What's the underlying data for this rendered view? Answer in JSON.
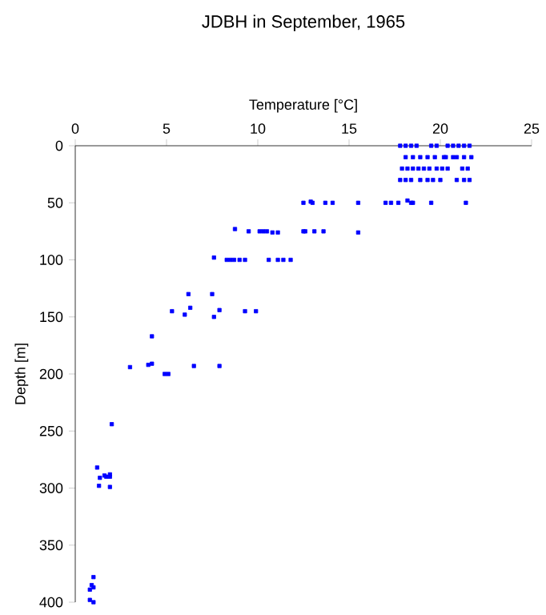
{
  "chart_data": {
    "type": "scatter",
    "title": "JDBH in September, 1965",
    "xlabel": "Temperature [°C]",
    "ylabel": "Depth [m]",
    "xlim": [
      0,
      25
    ],
    "xticks": [
      0,
      5,
      10,
      15,
      20,
      25
    ],
    "ylim": [
      400,
      0
    ],
    "yticks": [
      0,
      50,
      100,
      150,
      200,
      250,
      300,
      350,
      400
    ],
    "marker": "square",
    "series": [
      {
        "color": "#0000ff",
        "x": [
          17.8,
          18.1,
          18.4,
          18.7,
          19.5,
          19.8,
          20.4,
          20.7,
          21.0,
          21.3,
          21.6,
          18.1,
          18.5,
          18.9,
          19.3,
          19.7,
          20.2,
          20.3,
          20.7,
          20.9,
          21.3,
          21.7,
          17.9,
          18.2,
          18.5,
          18.8,
          19.1,
          19.4,
          19.8,
          20.1,
          20.4,
          21.2,
          21.5,
          17.8,
          18.1,
          18.4,
          18.9,
          19.3,
          19.6,
          20.0,
          20.9,
          21.3,
          21.6,
          12.5,
          12.9,
          13.0,
          13.7,
          14.1,
          15.5,
          17.0,
          17.3,
          17.7,
          18.2,
          18.4,
          18.5,
          19.5,
          21.4,
          8.75,
          9.5,
          10.1,
          10.3,
          10.5,
          10.8,
          11.1,
          12.5,
          12.6,
          13.1,
          13.6,
          15.5,
          7.6,
          8.3,
          8.5,
          8.7,
          9.0,
          9.3,
          10.6,
          11.1,
          11.4,
          11.8,
          6.2,
          7.5,
          5.3,
          6.0,
          6.3,
          7.6,
          7.9,
          9.3,
          9.9,
          4.2,
          3.0,
          4.0,
          4.2,
          4.9,
          5.1,
          6.5,
          7.9,
          2.0,
          1.2,
          1.35,
          1.6,
          1.9,
          1.7,
          1.9,
          1.3,
          1.9,
          1.0,
          0.9,
          0.8,
          1.0,
          0.8,
          1.0
        ],
        "values": [
          0,
          0,
          0,
          0,
          0,
          0,
          0,
          0,
          0,
          0,
          0,
          10,
          10,
          10,
          10,
          10,
          10,
          10,
          10,
          10,
          10,
          10,
          20,
          20,
          20,
          20,
          20,
          20,
          20,
          20,
          20,
          20,
          20,
          30,
          30,
          30,
          30,
          30,
          30,
          30,
          30,
          30,
          30,
          50,
          49,
          50,
          50,
          50,
          50,
          50,
          50,
          50,
          48,
          50,
          50,
          50,
          50,
          73,
          75,
          75,
          75,
          75,
          76,
          76,
          75,
          75,
          75,
          75,
          76,
          98,
          100,
          100,
          100,
          100,
          100,
          100,
          100,
          100,
          100,
          130,
          130,
          145,
          148,
          142,
          150,
          144,
          145,
          145,
          167,
          194,
          192,
          191,
          200,
          200,
          193,
          193,
          244,
          282,
          291,
          289,
          288,
          290,
          290,
          298,
          299,
          378,
          385,
          389,
          387,
          398,
          400
        ]
      }
    ]
  }
}
